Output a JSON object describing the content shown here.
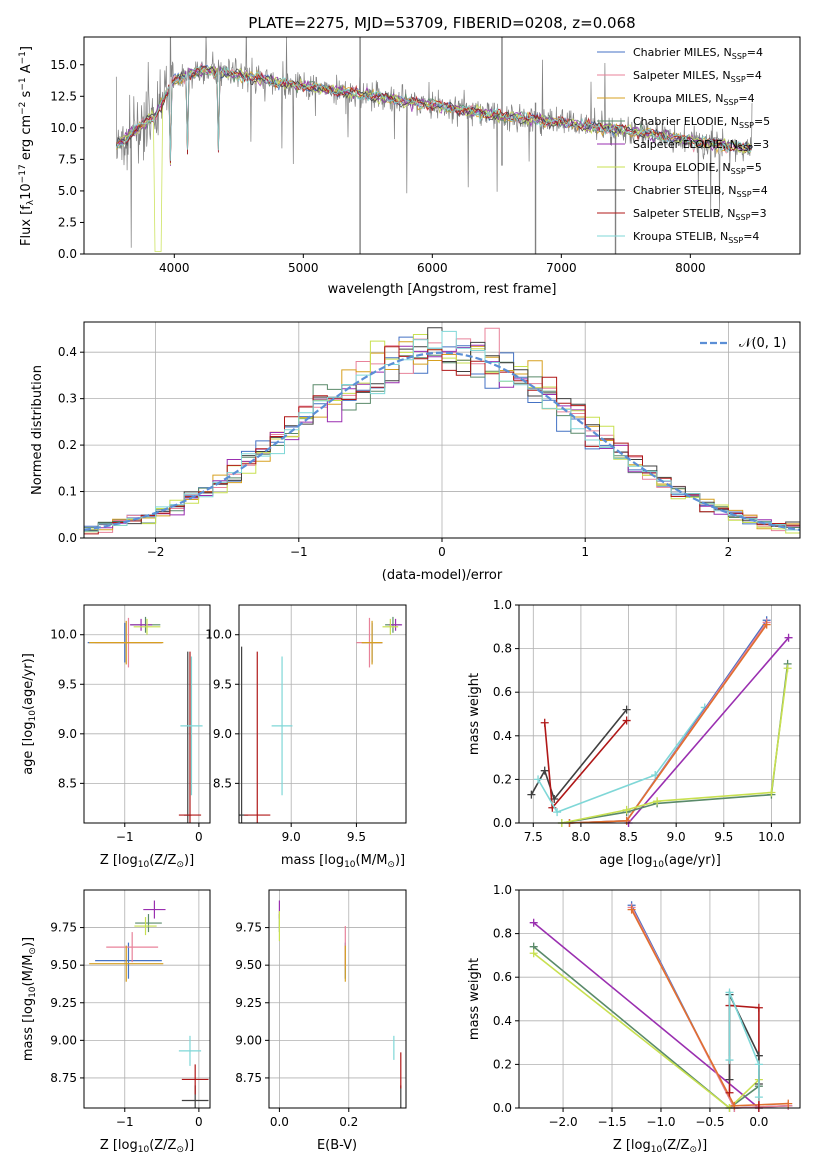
{
  "colors": {
    "Chabrier MILES": "#4472c4",
    "Salpeter MILES": "#e8829a",
    "Kroupa MILES": "#d7a020",
    "Chabrier ELODIE": "#5a8a6a",
    "Salpeter ELODIE": "#9a2fb0",
    "Kroupa ELODIE": "#c8e050",
    "Chabrier STELIB": "#404040",
    "Salpeter STELIB": "#b01818",
    "Kroupa STELIB": "#7fd7d7",
    "data": "#808080",
    "orange": "#e07030",
    "gauss": "#5b8fd6"
  },
  "chart_data": [
    {
      "id": "spectrum",
      "type": "line",
      "title": "PLATE=2275, MJD=53709, FIBERID=0208, z=0.068",
      "xlabel": "wavelength [Angstrom, rest frame]",
      "ylabel": "Flux [f",
      "ylabel_sub": "λ",
      "ylabel_rest": "10",
      "ylabel_exp": "−17",
      "ylabel_rest2": " erg cm",
      "ylabel_exp2": "−2",
      "ylabel_rest3": " s",
      "ylabel_exp3": "−1",
      "ylabel_rest4": " A",
      "ylabel_exp4": "−1",
      "ylabel_end": "]",
      "xlim": [
        3300,
        8850
      ],
      "ylim": [
        0,
        17.2
      ],
      "xticks": [
        4000,
        5000,
        6000,
        7000,
        8000
      ],
      "xtick_labels": [
        "4000",
        "5000",
        "6000",
        "7000",
        "8000"
      ],
      "yticks": [
        0,
        2.5,
        5,
        7.5,
        10,
        12.5,
        15
      ],
      "ytick_labels": [
        "0.0",
        "2.5",
        "5.0",
        "7.5",
        "10.0",
        "12.5",
        "15.0"
      ],
      "continuum": [
        [
          3550,
          8.6
        ],
        [
          3700,
          9.8
        ],
        [
          3850,
          11.0
        ],
        [
          4000,
          13.8
        ],
        [
          4200,
          14.6
        ],
        [
          4500,
          14.2
        ],
        [
          4800,
          13.6
        ],
        [
          5000,
          13.3
        ],
        [
          5500,
          12.6
        ],
        [
          6000,
          11.8
        ],
        [
          6500,
          11.0
        ],
        [
          7000,
          10.4
        ],
        [
          7500,
          9.8
        ],
        [
          8000,
          9.0
        ],
        [
          8500,
          8.3
        ]
      ],
      "legend": [
        {
          "name": "Chabrier MILES",
          "label": "Chabrier MILES, N",
          "sub": "SSP",
          "val": "=4"
        },
        {
          "name": "Salpeter MILES",
          "label": "Salpeter MILES, N",
          "sub": "SSP",
          "val": "=4"
        },
        {
          "name": "Kroupa MILES",
          "label": "Kroupa MILES, N",
          "sub": "SSP",
          "val": "=4"
        },
        {
          "name": "Chabrier ELODIE",
          "label": "Chabrier ELODIE, N",
          "sub": "SSP",
          "val": "=5"
        },
        {
          "name": "Salpeter ELODIE",
          "label": "Salpeter ELODIE, N",
          "sub": "SSP",
          "val": "=3"
        },
        {
          "name": "Kroupa ELODIE",
          "label": "Kroupa ELODIE, N",
          "sub": "SSP",
          "val": "=5"
        },
        {
          "name": "Chabrier STELIB",
          "label": "Chabrier STELIB, N",
          "sub": "SSP",
          "val": "=4"
        },
        {
          "name": "Salpeter STELIB",
          "label": "Salpeter STELIB, N",
          "sub": "SSP",
          "val": "=3"
        },
        {
          "name": "Kroupa STELIB",
          "label": "Kroupa STELIB, N",
          "sub": "SSP",
          "val": "=4"
        }
      ]
    },
    {
      "id": "residuals",
      "type": "histogram",
      "xlabel": "(data-model)/error",
      "ylabel": "Normed distribution",
      "xlim": [
        -2.5,
        2.5
      ],
      "ylim": [
        0,
        0.465
      ],
      "xticks": [
        -2,
        -1,
        0,
        1,
        2
      ],
      "xtick_labels": [
        "−2",
        "−1",
        "0",
        "1",
        "2"
      ],
      "yticks": [
        0,
        0.1,
        0.2,
        0.3,
        0.4
      ],
      "ytick_labels": [
        "0.0",
        "0.1",
        "0.2",
        "0.3",
        "0.4"
      ],
      "legend": "𝒩(0, 1)",
      "bin_width": 0.1
    },
    {
      "id": "age_vs_Z",
      "type": "errorbar",
      "xlabel": "Z [log",
      "xlabel_sub": "10",
      "xlabel_rest": "(Z/Z",
      "xlabel_sub2": "⊙",
      "xlabel_end": ")]",
      "ylabel": "age  [log",
      "ylabel_sub": "10",
      "ylabel_rest": "(age/yr)]",
      "xlim": [
        -1.55,
        0.15
      ],
      "ylim": [
        8.1,
        10.3
      ],
      "xticks": [
        -1,
        0
      ],
      "xtick_labels": [
        "−1",
        "0"
      ],
      "yticks": [
        8.5,
        9.0,
        9.5,
        10.0
      ],
      "ytick_labels": [
        "8.5",
        "9.0",
        "9.5",
        "10.0"
      ],
      "points": [
        {
          "s": "Chabrier MILES",
          "x": -1.0,
          "xe": 0.5,
          "y": 9.92,
          "ye": 0.2
        },
        {
          "s": "Salpeter MILES",
          "x": -0.95,
          "xe": 0.45,
          "y": 9.92,
          "ye": 0.25
        },
        {
          "s": "Kroupa MILES",
          "x": -0.98,
          "xe": 0.5,
          "y": 9.92,
          "ye": 0.22
        },
        {
          "s": "Chabrier ELODIE",
          "x": -0.72,
          "xe": 0.2,
          "y": 10.1,
          "ye": 0.08
        },
        {
          "s": "Salpeter ELODIE",
          "x": -0.78,
          "xe": 0.15,
          "y": 10.1,
          "ye": 0.06
        },
        {
          "s": "Kroupa ELODIE",
          "x": -0.7,
          "xe": 0.18,
          "y": 10.08,
          "ye": 0.08
        },
        {
          "s": "Chabrier STELIB",
          "x": -0.15,
          "xe": 0.05,
          "y": 8.18,
          "ye": 1.65
        },
        {
          "s": "Salpeter STELIB",
          "x": -0.12,
          "xe": 0.15,
          "y": 8.18,
          "ye": 1.65
        },
        {
          "s": "Kroupa STELIB",
          "x": -0.1,
          "xe": 0.15,
          "y": 9.08,
          "ye": 0.7
        }
      ]
    },
    {
      "id": "age_vs_mass",
      "type": "errorbar",
      "xlabel": "mass [log",
      "xlabel_sub": "10",
      "xlabel_rest": "(M/M",
      "xlabel_sub2": "⊙",
      "xlabel_end": ")]",
      "xlim": [
        8.6,
        9.88
      ],
      "ylim": [
        8.1,
        10.3
      ],
      "xticks": [
        9.0,
        9.5
      ],
      "xtick_labels": [
        "9.0",
        "9.5"
      ],
      "yticks": [
        8.5,
        9.0,
        9.5,
        10.0
      ],
      "ytick_labels": [
        "8.5",
        "9.0",
        "9.5",
        "10.0"
      ],
      "points": [
        {
          "s": "Chabrier MILES",
          "x": 9.62,
          "xe": 0.08,
          "y": 9.92,
          "ye": 0.2
        },
        {
          "s": "Salpeter MILES",
          "x": 9.6,
          "xe": 0.1,
          "y": 9.92,
          "ye": 0.25
        },
        {
          "s": "Kroupa MILES",
          "x": 9.62,
          "xe": 0.08,
          "y": 9.92,
          "ye": 0.22
        },
        {
          "s": "Chabrier ELODIE",
          "x": 9.78,
          "xe": 0.06,
          "y": 10.1,
          "ye": 0.08
        },
        {
          "s": "Salpeter ELODIE",
          "x": 9.8,
          "xe": 0.05,
          "y": 10.1,
          "ye": 0.06
        },
        {
          "s": "Kroupa ELODIE",
          "x": 9.76,
          "xe": 0.06,
          "y": 10.08,
          "ye": 0.08
        },
        {
          "s": "Chabrier STELIB",
          "x": 8.62,
          "xe": 0.05,
          "y": 8.18,
          "ye": 1.7
        },
        {
          "s": "Salpeter STELIB",
          "x": 8.74,
          "xe": 0.1,
          "y": 8.18,
          "ye": 1.65
        },
        {
          "s": "Kroupa STELIB",
          "x": 8.93,
          "xe": 0.08,
          "y": 9.08,
          "ye": 0.7
        }
      ]
    },
    {
      "id": "massweight_vs_age",
      "type": "line",
      "xlabel": "age  [log",
      "xlabel_sub": "10",
      "xlabel_rest": "(age/yr)]",
      "ylabel": "mass weight",
      "xlim": [
        7.35,
        10.3
      ],
      "ylim": [
        0,
        1.0
      ],
      "xticks": [
        7.5,
        8.0,
        8.5,
        9.0,
        9.5,
        10.0
      ],
      "xtick_labels": [
        "7.5",
        "8.0",
        "8.5",
        "9.0",
        "9.5",
        "10.0"
      ],
      "yticks": [
        0,
        0.2,
        0.4,
        0.6,
        0.8,
        1.0
      ],
      "ytick_labels": [
        "0.0",
        "0.2",
        "0.4",
        "0.6",
        "0.8",
        "1.0"
      ],
      "series": [
        {
          "s": "Chabrier STELIB",
          "x": [
            7.48,
            7.62,
            7.72,
            8.48
          ],
          "y": [
            0.13,
            0.24,
            0.11,
            0.52
          ]
        },
        {
          "s": "Salpeter STELIB",
          "x": [
            7.62,
            7.7,
            8.48
          ],
          "y": [
            0.46,
            0.07,
            0.47
          ]
        },
        {
          "s": "Kroupa STELIB",
          "x": [
            7.55,
            7.75,
            8.78,
            9.3
          ],
          "y": [
            0.2,
            0.05,
            0.22,
            0.53
          ]
        },
        {
          "s": "Salpeter ELODIE",
          "x": [
            8.5,
            10.18
          ],
          "y": [
            0.0,
            0.85
          ]
        },
        {
          "s": "Chabrier MILES",
          "x": [
            7.88,
            8.48,
            9.95
          ],
          "y": [
            0.0,
            0.01,
            0.93
          ]
        },
        {
          "s": "Salpeter MILES",
          "x": [
            7.88,
            8.48,
            9.95
          ],
          "y": [
            0.0,
            0.01,
            0.92
          ]
        },
        {
          "s": "orange",
          "x": [
            7.88,
            8.48,
            9.95
          ],
          "y": [
            0.0,
            0.01,
            0.91
          ]
        },
        {
          "s": "Chabrier ELODIE",
          "x": [
            7.8,
            8.48,
            8.8,
            10.0,
            10.17
          ],
          "y": [
            0.0,
            0.05,
            0.09,
            0.13,
            0.73
          ]
        },
        {
          "s": "Kroupa ELODIE",
          "x": [
            7.8,
            8.48,
            8.8,
            10.0,
            10.17
          ],
          "y": [
            0.0,
            0.06,
            0.1,
            0.14,
            0.71
          ]
        }
      ]
    },
    {
      "id": "mass_vs_Z",
      "type": "errorbar",
      "xlabel": "Z [log",
      "xlabel_sub": "10",
      "xlabel_rest": "(Z/Z",
      "xlabel_sub2": "⊙",
      "xlabel_end": ")]",
      "ylabel": "mass [log",
      "ylabel_sub": "10",
      "ylabel_rest": "(M/M",
      "ylabel_sub2": "⊙",
      "ylabel_end": ")]",
      "xlim": [
        -1.55,
        0.15
      ],
      "ylim": [
        8.55,
        10.0
      ],
      "xticks": [
        -1,
        0
      ],
      "xtick_labels": [
        "−1",
        "0"
      ],
      "yticks": [
        8.75,
        9.0,
        9.25,
        9.5,
        9.75
      ],
      "ytick_labels": [
        "8.75",
        "9.00",
        "9.25",
        "9.50",
        "9.75"
      ],
      "points": [
        {
          "s": "Chabrier MILES",
          "x": -0.95,
          "xe": 0.45,
          "y": 9.53,
          "ye": 0.12
        },
        {
          "s": "Salpeter MILES",
          "x": -0.9,
          "xe": 0.35,
          "y": 9.62,
          "ye": 0.1
        },
        {
          "s": "Kroupa MILES",
          "x": -0.98,
          "xe": 0.5,
          "y": 9.51,
          "ye": 0.12
        },
        {
          "s": "Chabrier ELODIE",
          "x": -0.68,
          "xe": 0.18,
          "y": 9.78,
          "ye": 0.06
        },
        {
          "s": "Salpeter ELODIE",
          "x": -0.6,
          "xe": 0.15,
          "y": 9.87,
          "ye": 0.06
        },
        {
          "s": "Kroupa ELODIE",
          "x": -0.72,
          "xe": 0.15,
          "y": 9.76,
          "ye": 0.06
        },
        {
          "s": "Chabrier STELIB",
          "x": -0.05,
          "xe": 0.18,
          "y": 8.6,
          "ye": 0.1
        },
        {
          "s": "Salpeter STELIB",
          "x": -0.05,
          "xe": 0.18,
          "y": 8.74,
          "ye": 0.1
        },
        {
          "s": "Kroupa STELIB",
          "x": -0.12,
          "xe": 0.15,
          "y": 8.93,
          "ye": 0.1
        }
      ]
    },
    {
      "id": "mass_vs_EBV",
      "type": "errorbar",
      "xlabel": "E(B-V)",
      "xlim": [
        -0.03,
        0.365
      ],
      "ylim": [
        8.55,
        10.0
      ],
      "xticks": [
        0.0,
        0.2
      ],
      "xtick_labels": [
        "0.0",
        "0.2"
      ],
      "yticks": [
        8.75,
        9.0,
        9.25,
        9.5,
        9.75
      ],
      "ytick_labels": [
        "8.75",
        "9.00",
        "9.25",
        "9.50",
        "9.75"
      ],
      "points": [
        {
          "s": "Chabrier MILES",
          "x": 0.19,
          "xe": 0.0,
          "y": 9.53,
          "ye": 0.12
        },
        {
          "s": "Salpeter MILES",
          "x": 0.19,
          "xe": 0.0,
          "y": 9.62,
          "ye": 0.14
        },
        {
          "s": "Kroupa MILES",
          "x": 0.19,
          "xe": 0.0,
          "y": 9.51,
          "ye": 0.12
        },
        {
          "s": "Chabrier ELODIE",
          "x": 0.0,
          "xe": 0.0,
          "y": 9.78,
          "ye": 0.06
        },
        {
          "s": "Salpeter ELODIE",
          "x": 0.0,
          "xe": 0.0,
          "y": 9.87,
          "ye": 0.06
        },
        {
          "s": "Kroupa ELODIE",
          "x": 0.0,
          "xe": 0.0,
          "y": 9.76,
          "ye": 0.1
        },
        {
          "s": "Chabrier STELIB",
          "x": 0.35,
          "xe": 0.0,
          "y": 8.6,
          "ye": 0.1
        },
        {
          "s": "Salpeter STELIB",
          "x": 0.35,
          "xe": 0.0,
          "y": 8.8,
          "ye": 0.12
        },
        {
          "s": "Kroupa STELIB",
          "x": 0.33,
          "xe": 0.0,
          "y": 8.95,
          "ye": 0.08
        }
      ]
    },
    {
      "id": "massweight_vs_Z",
      "type": "line",
      "xlabel": "Z [log",
      "xlabel_sub": "10",
      "xlabel_rest": "(Z/Z",
      "xlabel_sub2": "⊙",
      "xlabel_end": ")]",
      "ylabel": "mass weight",
      "xlim": [
        -2.45,
        0.42
      ],
      "ylim": [
        0,
        1.0
      ],
      "xticks": [
        -2.0,
        -1.5,
        -1.0,
        -0.5,
        0.0
      ],
      "xtick_labels": [
        "−2.0",
        "−1.5",
        "−1.0",
        "−0.5",
        "0.0"
      ],
      "yticks": [
        0,
        0.2,
        0.4,
        0.6,
        0.8,
        1.0
      ],
      "ytick_labels": [
        "0.0",
        "0.2",
        "0.4",
        "0.6",
        "0.8",
        "1.0"
      ],
      "series": [
        {
          "s": "Salpeter ELODIE",
          "x": [
            -2.3,
            0.0
          ],
          "y": [
            0.85,
            0.0
          ]
        },
        {
          "s": "Chabrier ELODIE",
          "x": [
            -2.3,
            -0.3,
            0.0
          ],
          "y": [
            0.74,
            0.0,
            0.1
          ]
        },
        {
          "s": "Kroupa ELODIE",
          "x": [
            -2.3,
            -0.3,
            0.0
          ],
          "y": [
            0.71,
            0.0,
            0.13
          ]
        },
        {
          "s": "Chabrier MILES",
          "x": [
            -1.3,
            -0.25,
            0.3
          ],
          "y": [
            0.93,
            0.0,
            0.01
          ]
        },
        {
          "s": "Salpeter MILES",
          "x": [
            -1.3,
            -0.25,
            0.3
          ],
          "y": [
            0.92,
            0.0,
            0.01
          ]
        },
        {
          "s": "orange",
          "x": [
            -1.3,
            -0.25,
            0.3
          ],
          "y": [
            0.91,
            0.01,
            0.02
          ]
        },
        {
          "s": "Salpeter STELIB",
          "x": [
            -0.3,
            -0.3,
            0.0,
            0.0
          ],
          "y": [
            0.07,
            0.47,
            0.46,
            0.0
          ]
        },
        {
          "s": "Chabrier STELIB",
          "x": [
            -0.3,
            -0.3,
            0.0,
            0.0
          ],
          "y": [
            0.13,
            0.52,
            0.24,
            0.11
          ]
        },
        {
          "s": "Kroupa STELIB",
          "x": [
            -0.3,
            -0.3,
            0.0,
            0.0
          ],
          "y": [
            0.22,
            0.53,
            0.2,
            0.05
          ]
        }
      ]
    }
  ]
}
